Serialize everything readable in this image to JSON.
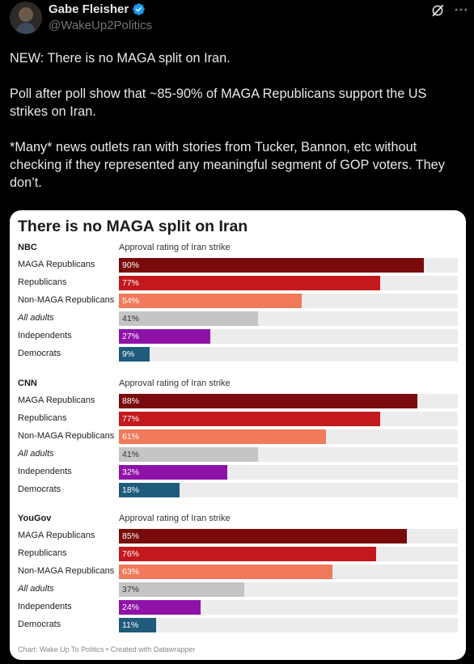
{
  "author": {
    "display_name": "Gabe Fleisher",
    "handle": "@WakeUp2Politics"
  },
  "tweet": {
    "paragraphs": [
      "NEW: There is no MAGA split on Iran.",
      "Poll after poll show that ~85-90% of MAGA Republicans support the US strikes on Iran.",
      "*Many* news outlets ran with stories from Tucker, Bannon, etc without checking if they represented any meaningful segment of GOP voters. They don’t."
    ]
  },
  "icons": {
    "verified": "verified-badge-icon",
    "grok": "grok-icon",
    "more": "more-options-icon"
  },
  "colors": {
    "MAGA Republicans": "#7a0b0b",
    "Republicans": "#c3191d",
    "Non-MAGA Republicans": "#f07a5a",
    "All adults": "#c5c5c5",
    "Independents": "#8e12a8",
    "Democrats": "#1f5b7a"
  },
  "chart_data": {
    "type": "bar",
    "title": "There is no MAGA split on Iran",
    "xlim": [
      0,
      100
    ],
    "groups": [
      {
        "pollster": "NBC",
        "sublabel": "Approval rating of Iran strike",
        "rows": [
          {
            "label": "MAGA Republicans",
            "value": 90,
            "display": "90%",
            "italic": false
          },
          {
            "label": "Republicans",
            "value": 77,
            "display": "77%",
            "italic": false
          },
          {
            "label": "Non-MAGA Republicans",
            "value": 54,
            "display": "54%",
            "italic": false
          },
          {
            "label": "All adults",
            "value": 41,
            "display": "41%",
            "italic": true
          },
          {
            "label": "Independents",
            "value": 27,
            "display": "27%",
            "italic": false
          },
          {
            "label": "Democrats",
            "value": 9,
            "display": "9%",
            "italic": false
          }
        ]
      },
      {
        "pollster": "CNN",
        "sublabel": "Approval rating of Iran strike",
        "rows": [
          {
            "label": "MAGA Republicans",
            "value": 88,
            "display": "88%",
            "italic": false
          },
          {
            "label": "Republicans",
            "value": 77,
            "display": "77%",
            "italic": false
          },
          {
            "label": "Non-MAGA Republicans",
            "value": 61,
            "display": "61%",
            "italic": false
          },
          {
            "label": "All adults",
            "value": 41,
            "display": "41%",
            "italic": true
          },
          {
            "label": "Independents",
            "value": 32,
            "display": "32%",
            "italic": false
          },
          {
            "label": "Democrats",
            "value": 18,
            "display": "18%",
            "italic": false
          }
        ]
      },
      {
        "pollster": "YouGov",
        "sublabel": "Approval rating of Iran strike",
        "rows": [
          {
            "label": "MAGA Republicans",
            "value": 85,
            "display": "85%",
            "italic": false
          },
          {
            "label": "Republicans",
            "value": 76,
            "display": "76%",
            "italic": false
          },
          {
            "label": "Non-MAGA Republicans",
            "value": 63,
            "display": "63%",
            "italic": false
          },
          {
            "label": "All adults",
            "value": 37,
            "display": "37%",
            "italic": true
          },
          {
            "label": "Independents",
            "value": 24,
            "display": "24%",
            "italic": false
          },
          {
            "label": "Democrats",
            "value": 11,
            "display": "11%",
            "italic": false
          }
        ]
      }
    ],
    "footer": "Chart: Wake Up To Politics • Created with Datawrapper"
  }
}
